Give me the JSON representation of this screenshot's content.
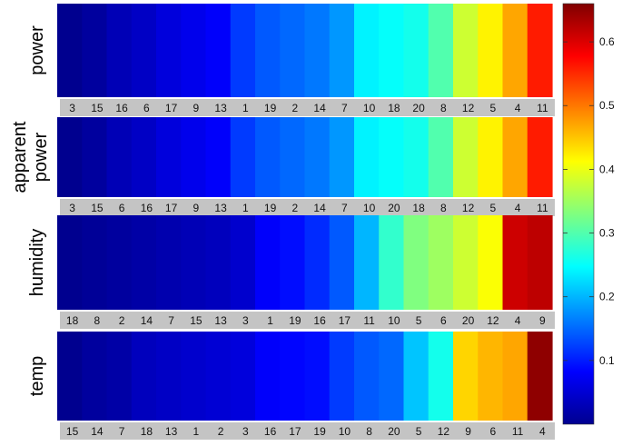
{
  "chart_data": {
    "type": "heatmap",
    "title": "",
    "colormap": "jet",
    "colorbar": {
      "range": [
        0,
        0.66
      ],
      "ticks": [
        "0.1",
        "0.2",
        "0.3",
        "0.4",
        "0.5",
        "0.6"
      ]
    },
    "rows": [
      {
        "name": "power",
        "categories": [
          "3",
          "15",
          "16",
          "6",
          "17",
          "9",
          "13",
          "1",
          "19",
          "2",
          "14",
          "7",
          "10",
          "18",
          "20",
          "8",
          "12",
          "5",
          "4",
          "11"
        ],
        "values": [
          0.01,
          0.02,
          0.035,
          0.045,
          0.06,
          0.07,
          0.08,
          0.12,
          0.14,
          0.15,
          0.16,
          0.18,
          0.24,
          0.25,
          0.26,
          0.3,
          0.38,
          0.42,
          0.47,
          0.56
        ]
      },
      {
        "name": "apparent power",
        "categories": [
          "3",
          "15",
          "6",
          "16",
          "17",
          "9",
          "13",
          "1",
          "19",
          "2",
          "14",
          "7",
          "10",
          "20",
          "18",
          "8",
          "12",
          "5",
          "4",
          "11"
        ],
        "values": [
          0.01,
          0.02,
          0.035,
          0.045,
          0.06,
          0.07,
          0.08,
          0.12,
          0.14,
          0.15,
          0.16,
          0.18,
          0.24,
          0.25,
          0.26,
          0.3,
          0.38,
          0.42,
          0.47,
          0.56
        ]
      },
      {
        "name": "humidity",
        "categories": [
          "18",
          "8",
          "2",
          "14",
          "7",
          "15",
          "13",
          "3",
          "1",
          "19",
          "16",
          "17",
          "11",
          "10",
          "5",
          "6",
          "20",
          "12",
          "4",
          "9"
        ],
        "values": [
          0.01,
          0.015,
          0.02,
          0.025,
          0.03,
          0.035,
          0.04,
          0.05,
          0.08,
          0.09,
          0.11,
          0.14,
          0.2,
          0.28,
          0.33,
          0.35,
          0.38,
          0.41,
          0.61,
          0.62
        ]
      },
      {
        "name": "temp",
        "categories": [
          "15",
          "14",
          "7",
          "18",
          "13",
          "1",
          "2",
          "3",
          "16",
          "17",
          "19",
          "10",
          "8",
          "20",
          "5",
          "12",
          "9",
          "6",
          "11",
          "4"
        ],
        "values": [
          0.01,
          0.02,
          0.025,
          0.04,
          0.045,
          0.05,
          0.055,
          0.06,
          0.08,
          0.085,
          0.09,
          0.12,
          0.14,
          0.15,
          0.21,
          0.26,
          0.44,
          0.46,
          0.47,
          0.65
        ]
      }
    ]
  }
}
